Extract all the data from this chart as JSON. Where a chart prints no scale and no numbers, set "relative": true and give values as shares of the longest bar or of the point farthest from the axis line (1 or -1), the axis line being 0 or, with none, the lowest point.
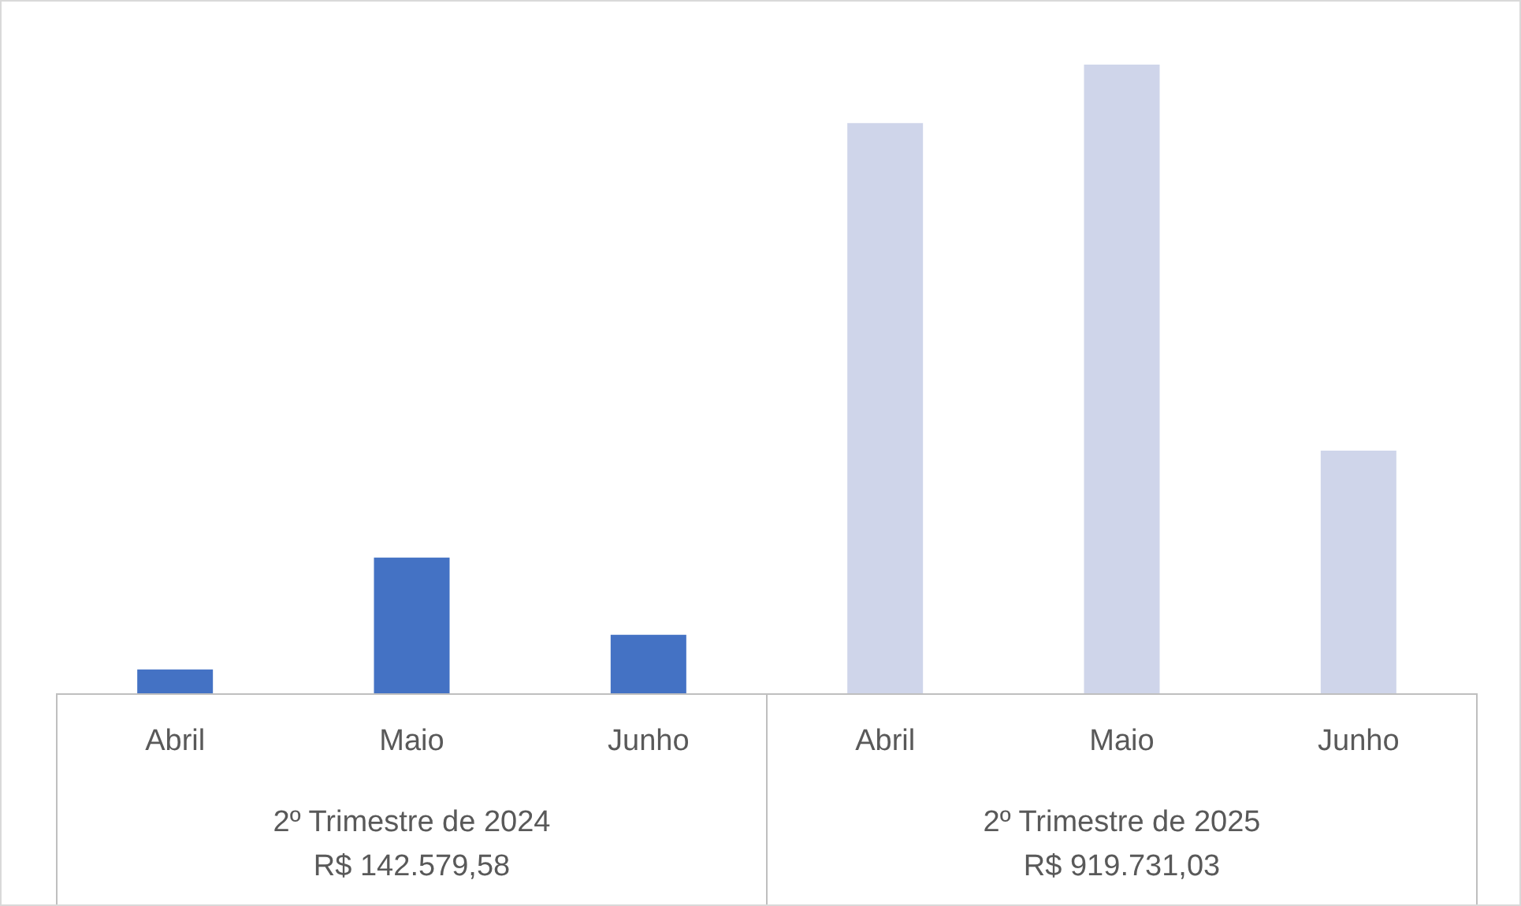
{
  "chart_data": {
    "type": "bar",
    "relative": true,
    "categories": [
      "Abril",
      "Maio",
      "Junho",
      "Abril",
      "Maio",
      "Junho"
    ],
    "values": [
      0.038,
      0.216,
      0.093,
      0.907,
      1,
      0.386
    ],
    "colors": [
      "#4472c4",
      "#4472c4",
      "#4472c4",
      "#cfd5ea",
      "#cfd5ea",
      "#cfd5ea"
    ],
    "annotations": [
      "2º Trimestre de 2024\nR$ 142.579,58",
      "2º Trimestre de 2025\nR$ 919.731,03"
    ]
  }
}
